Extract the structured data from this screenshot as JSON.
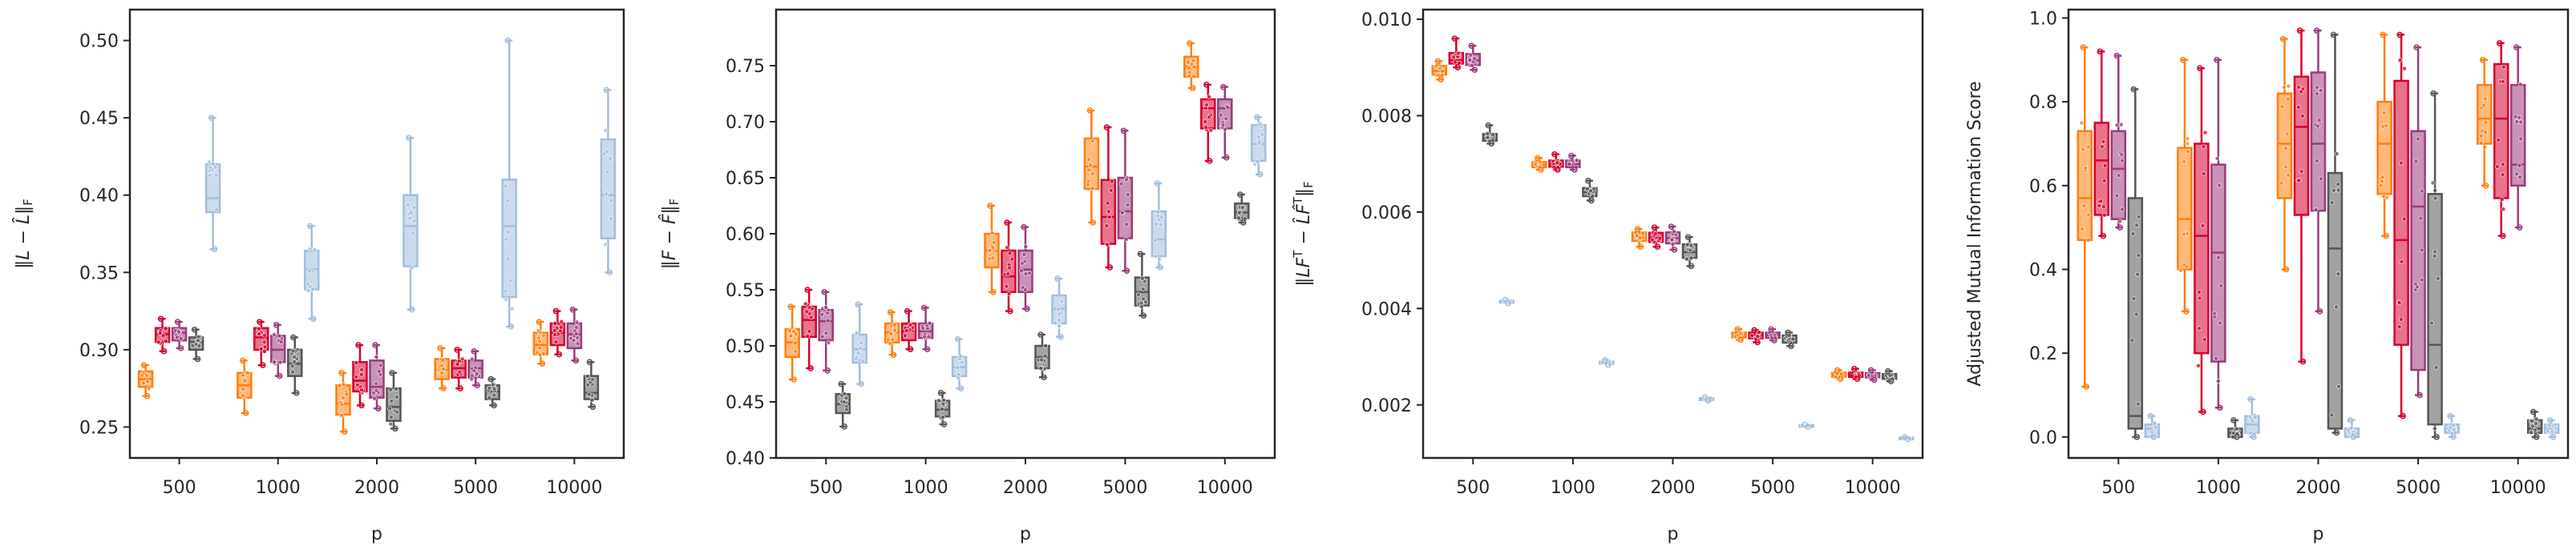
{
  "chart_data": [
    {
      "type": "box",
      "categories": [
        "500",
        "1000",
        "2000",
        "5000",
        "10000"
      ],
      "xlabel": "p",
      "ylabel": "‖L − L̂‖_F",
      "ylabel_svg": "‖<tspan font-style='italic'>L</tspan> − <tspan font-style='italic'>L̂</tspan>‖<tspan font-size='15' dy='4'>F</tspan>",
      "ylim": [
        0.23,
        0.52
      ],
      "yticks": [
        0.25,
        0.3,
        0.35,
        0.4,
        0.45,
        0.5
      ],
      "ytick_labels": [
        "0.25",
        "0.30",
        "0.35",
        "0.40",
        "0.45",
        "0.50"
      ],
      "series": [
        {
          "color": "#ff7f0e",
          "boxes": [
            [
              0.27,
              0.276,
              0.281,
              0.286,
              0.29
            ],
            [
              0.259,
              0.269,
              0.277,
              0.285,
              0.293
            ],
            [
              0.247,
              0.258,
              0.265,
              0.277,
              0.285
            ],
            [
              0.275,
              0.281,
              0.287,
              0.294,
              0.301
            ],
            [
              0.291,
              0.297,
              0.303,
              0.311,
              0.318
            ]
          ]
        },
        {
          "color": "#d4002e",
          "boxes": [
            [
              0.299,
              0.305,
              0.31,
              0.314,
              0.32
            ],
            [
              0.29,
              0.3,
              0.308,
              0.314,
              0.318
            ],
            [
              0.264,
              0.273,
              0.28,
              0.292,
              0.303
            ],
            [
              0.275,
              0.282,
              0.288,
              0.293,
              0.3
            ],
            [
              0.297,
              0.303,
              0.311,
              0.317,
              0.325
            ]
          ]
        },
        {
          "color": "#9a3b7a",
          "boxes": [
            [
              0.301,
              0.306,
              0.311,
              0.314,
              0.318
            ],
            [
              0.283,
              0.292,
              0.3,
              0.309,
              0.316
            ],
            [
              0.262,
              0.269,
              0.276,
              0.293,
              0.303
            ],
            [
              0.277,
              0.282,
              0.288,
              0.293,
              0.299
            ],
            [
              0.293,
              0.301,
              0.31,
              0.317,
              0.326
            ]
          ]
        },
        {
          "color": "#555555",
          "boxes": [
            [
              0.294,
              0.3,
              0.305,
              0.308,
              0.313
            ],
            [
              0.272,
              0.283,
              0.291,
              0.3,
              0.308
            ],
            [
              0.249,
              0.254,
              0.263,
              0.275,
              0.285
            ],
            [
              0.264,
              0.268,
              0.273,
              0.277,
              0.281
            ],
            [
              0.263,
              0.268,
              0.272,
              0.283,
              0.292
            ]
          ]
        },
        {
          "color": "#a2bedc",
          "boxes": [
            [
              0.365,
              0.389,
              0.398,
              0.42,
              0.45
            ],
            [
              0.32,
              0.339,
              0.352,
              0.364,
              0.38
            ],
            [
              0.326,
              0.354,
              0.38,
              0.4,
              0.437
            ],
            [
              0.315,
              0.334,
              0.38,
              0.41,
              0.5
            ],
            [
              0.35,
              0.372,
              0.4,
              0.436,
              0.468
            ]
          ]
        }
      ]
    },
    {
      "type": "box",
      "categories": [
        "500",
        "1000",
        "2000",
        "5000",
        "10000"
      ],
      "xlabel": "p",
      "ylabel": "‖F − F̂‖_F",
      "ylabel_svg": "‖<tspan font-style='italic'>F</tspan> − <tspan font-style='italic'>F̂</tspan>‖<tspan font-size='15' dy='4'>F</tspan>",
      "ylim": [
        0.4,
        0.8
      ],
      "yticks": [
        0.4,
        0.45,
        0.5,
        0.55,
        0.6,
        0.65,
        0.7,
        0.75
      ],
      "ytick_labels": [
        "0.40",
        "0.45",
        "0.50",
        "0.55",
        "0.60",
        "0.65",
        "0.70",
        "0.75"
      ],
      "series": [
        {
          "color": "#ff7f0e",
          "boxes": [
            [
              0.47,
              0.49,
              0.503,
              0.515,
              0.535
            ],
            [
              0.492,
              0.503,
              0.512,
              0.52,
              0.53
            ],
            [
              0.548,
              0.57,
              0.585,
              0.6,
              0.625
            ],
            [
              0.61,
              0.64,
              0.66,
              0.685,
              0.71
            ],
            [
              0.73,
              0.74,
              0.749,
              0.758,
              0.77
            ]
          ]
        },
        {
          "color": "#d4002e",
          "boxes": [
            [
              0.48,
              0.508,
              0.523,
              0.535,
              0.55
            ],
            [
              0.497,
              0.505,
              0.513,
              0.52,
              0.531
            ],
            [
              0.531,
              0.548,
              0.562,
              0.585,
              0.61
            ],
            [
              0.57,
              0.591,
              0.615,
              0.648,
              0.695
            ],
            [
              0.665,
              0.694,
              0.712,
              0.72,
              0.733
            ]
          ]
        },
        {
          "color": "#9a3b7a",
          "boxes": [
            [
              0.478,
              0.505,
              0.522,
              0.532,
              0.548
            ],
            [
              0.497,
              0.507,
              0.513,
              0.52,
              0.534
            ],
            [
              0.533,
              0.548,
              0.568,
              0.585,
              0.606
            ],
            [
              0.567,
              0.596,
              0.62,
              0.65,
              0.692
            ],
            [
              0.668,
              0.694,
              0.712,
              0.72,
              0.731
            ]
          ]
        },
        {
          "color": "#555555",
          "boxes": [
            [
              0.428,
              0.44,
              0.448,
              0.457,
              0.466
            ],
            [
              0.43,
              0.437,
              0.443,
              0.451,
              0.458
            ],
            [
              0.472,
              0.48,
              0.49,
              0.5,
              0.51
            ],
            [
              0.527,
              0.536,
              0.548,
              0.561,
              0.582
            ],
            [
              0.61,
              0.614,
              0.619,
              0.627,
              0.635
            ]
          ]
        },
        {
          "color": "#a2bedc",
          "boxes": [
            [
              0.466,
              0.485,
              0.497,
              0.51,
              0.537
            ],
            [
              0.462,
              0.473,
              0.481,
              0.49,
              0.506
            ],
            [
              0.508,
              0.52,
              0.533,
              0.545,
              0.56
            ],
            [
              0.57,
              0.58,
              0.595,
              0.62,
              0.645
            ],
            [
              0.653,
              0.665,
              0.68,
              0.697,
              0.704
            ]
          ]
        }
      ]
    },
    {
      "type": "box",
      "categories": [
        "500",
        "1000",
        "2000",
        "5000",
        "10000"
      ],
      "xlabel": "p",
      "ylabel": "‖LF^T − L̂F̂^T‖_F",
      "ylabel_svg": "‖<tspan font-style='italic'>LF</tspan><tspan font-size='15' dy='-9'>T</tspan><tspan dy='9'> − </tspan><tspan font-style='italic'>L̂F̂</tspan><tspan font-size='15' dy='-9'>T</tspan><tspan dy='9'>‖</tspan><tspan font-size='15' dy='4'>F</tspan>",
      "ylim": [
        0.0009,
        0.0102
      ],
      "yticks": [
        0.002,
        0.004,
        0.006,
        0.008,
        0.01
      ],
      "ytick_labels": [
        "0.002",
        "0.004",
        "0.006",
        "0.008",
        "0.010"
      ],
      "series": [
        {
          "color": "#ff7f0e",
          "boxes": [
            [
              0.00875,
              0.00885,
              0.00893,
              0.00903,
              0.00913
            ],
            [
              0.00688,
              0.00693,
              0.00698,
              0.00704,
              0.00712
            ],
            [
              0.00528,
              0.0054,
              0.00548,
              0.00558,
              0.00565
            ],
            [
              0.00335,
              0.0034,
              0.00345,
              0.0035,
              0.00357
            ],
            [
              0.00254,
              0.00258,
              0.00262,
              0.00267,
              0.00272
            ]
          ]
        },
        {
          "color": "#d4002e",
          "boxes": [
            [
              0.009,
              0.00908,
              0.00915,
              0.0093,
              0.0096
            ],
            [
              0.00688,
              0.00694,
              0.007,
              0.00707,
              0.0072
            ],
            [
              0.00528,
              0.00538,
              0.00547,
              0.00557,
              0.00568
            ],
            [
              0.0033,
              0.00338,
              0.00344,
              0.0035,
              0.00355
            ],
            [
              0.00254,
              0.00258,
              0.00261,
              0.00267,
              0.00275
            ]
          ]
        },
        {
          "color": "#9a3b7a",
          "boxes": [
            [
              0.00895,
              0.00905,
              0.00915,
              0.00928,
              0.00945
            ],
            [
              0.00688,
              0.00693,
              0.00699,
              0.00707,
              0.00717
            ],
            [
              0.00522,
              0.00535,
              0.00546,
              0.00558,
              0.0057
            ],
            [
              0.00334,
              0.00339,
              0.00345,
              0.0035,
              0.00357
            ],
            [
              0.00252,
              0.00257,
              0.00261,
              0.00266,
              0.00272
            ]
          ]
        },
        {
          "color": "#555555",
          "boxes": [
            [
              0.00742,
              0.00748,
              0.00753,
              0.00762,
              0.0078
            ],
            [
              0.00624,
              0.00633,
              0.00641,
              0.0065,
              0.00665
            ],
            [
              0.00488,
              0.00505,
              0.00517,
              0.00533,
              0.00548
            ],
            [
              0.00322,
              0.00329,
              0.00337,
              0.00344,
              0.0035
            ],
            [
              0.00249,
              0.00254,
              0.00259,
              0.00264,
              0.0027
            ]
          ]
        },
        {
          "color": "#a2bedc",
          "boxes": [
            [
              0.00411,
              0.00412,
              0.00414,
              0.00416,
              0.00418
            ],
            [
              0.00283,
              0.00285,
              0.00287,
              0.0029,
              0.00293
            ],
            [
              0.00209,
              0.0021,
              0.00212,
              0.00214,
              0.00216
            ],
            [
              0.00155,
              0.00156,
              0.00157,
              0.00158,
              0.00159
            ],
            [
              0.00129,
              0.0013,
              0.00131,
              0.00132,
              0.00133
            ]
          ]
        }
      ]
    },
    {
      "type": "box",
      "categories": [
        "500",
        "1000",
        "2000",
        "5000",
        "10000"
      ],
      "xlabel": "p",
      "ylabel": "Adjusted Mutual Information Score",
      "ylabel_svg": "Adjusted Mutual Information Score",
      "ylim": [
        -0.05,
        1.02
      ],
      "yticks": [
        0.0,
        0.2,
        0.4,
        0.6,
        0.8,
        1.0
      ],
      "ytick_labels": [
        "0.0",
        "0.2",
        "0.4",
        "0.6",
        "0.8",
        "1.0"
      ],
      "series": [
        {
          "color": "#ff7f0e",
          "boxes": [
            [
              0.12,
              0.47,
              0.57,
              0.73,
              0.93
            ],
            [
              0.3,
              0.4,
              0.52,
              0.69,
              0.9
            ],
            [
              0.4,
              0.57,
              0.7,
              0.82,
              0.95
            ],
            [
              0.48,
              0.58,
              0.7,
              0.8,
              0.96
            ],
            [
              0.6,
              0.7,
              0.76,
              0.84,
              0.9
            ]
          ]
        },
        {
          "color": "#d4002e",
          "boxes": [
            [
              0.48,
              0.53,
              0.66,
              0.75,
              0.92
            ],
            [
              0.06,
              0.2,
              0.48,
              0.7,
              0.88
            ],
            [
              0.18,
              0.53,
              0.74,
              0.86,
              0.97
            ],
            [
              0.05,
              0.22,
              0.47,
              0.85,
              0.96
            ],
            [
              0.48,
              0.57,
              0.76,
              0.89,
              0.94
            ]
          ]
        },
        {
          "color": "#9a3b7a",
          "boxes": [
            [
              0.5,
              0.52,
              0.64,
              0.73,
              0.91
            ],
            [
              0.07,
              0.18,
              0.44,
              0.65,
              0.9
            ],
            [
              0.3,
              0.54,
              0.7,
              0.87,
              0.97
            ],
            [
              0.1,
              0.16,
              0.55,
              0.73,
              0.93
            ],
            [
              0.5,
              0.6,
              0.65,
              0.84,
              0.93
            ]
          ]
        },
        {
          "color": "#555555",
          "boxes": [
            [
              0.0,
              0.02,
              0.05,
              0.57,
              0.83
            ],
            [
              0.0,
              0.0,
              0.01,
              0.02,
              0.04
            ],
            [
              0.01,
              0.02,
              0.45,
              0.63,
              0.96
            ],
            [
              0.0,
              0.03,
              0.22,
              0.58,
              0.82
            ],
            [
              0.0,
              0.01,
              0.02,
              0.04,
              0.06
            ]
          ]
        },
        {
          "color": "#a2bedc",
          "boxes": [
            [
              0.0,
              0.0,
              0.02,
              0.03,
              0.05
            ],
            [
              0.0,
              0.01,
              0.03,
              0.05,
              0.09
            ],
            [
              0.0,
              0.0,
              0.01,
              0.02,
              0.04
            ],
            [
              0.0,
              0.01,
              0.02,
              0.03,
              0.05
            ],
            [
              0.0,
              0.01,
              0.02,
              0.03,
              0.04
            ]
          ]
        }
      ]
    }
  ]
}
